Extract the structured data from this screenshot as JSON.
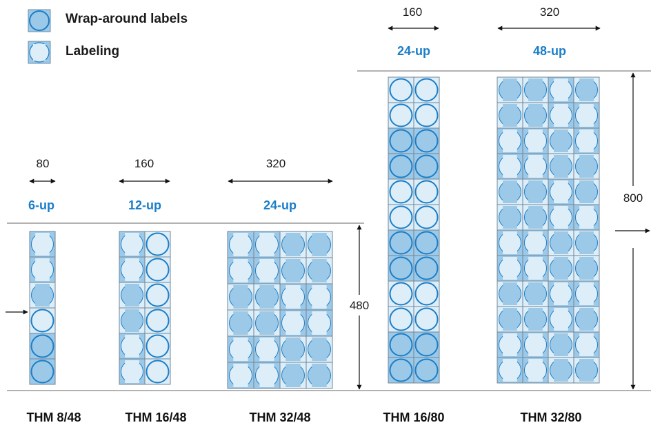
{
  "legend": {
    "wrap_label": "Wrap-around labels",
    "labeling_label": "Labeling"
  },
  "colors": {
    "accent": "#1a7ec8",
    "cell_dark": "#9cc9e8",
    "cell_light": "#ddeef9",
    "ink": "#1a1a1a",
    "line": "#555555"
  },
  "height_small": "480",
  "height_large": "800",
  "machines": [
    {
      "width": "80",
      "format": "6-up",
      "name": "THM 8/48"
    },
    {
      "width": "160",
      "format": "12-up",
      "name": "THM 16/48"
    },
    {
      "width": "320",
      "format": "24-up",
      "name": "THM 32/48"
    },
    {
      "width": "160",
      "format": "24-up",
      "name": "THM 16/80"
    },
    {
      "width": "320",
      "format": "48-up",
      "name": "THM 32/80"
    }
  ]
}
